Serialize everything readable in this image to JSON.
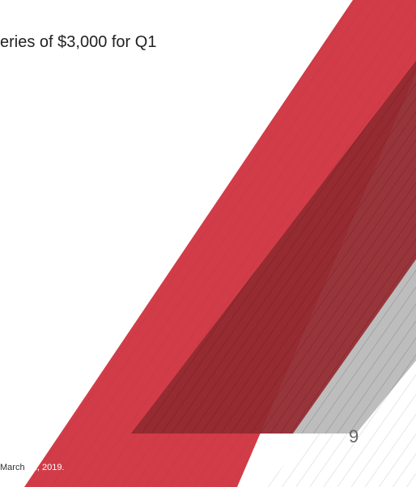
{
  "slide": {
    "headline_text": "eries of $3,000 for Q1",
    "page_number": "9",
    "footnote": {
      "part_dark": "March",
      "part_light": " 31, 2019."
    }
  },
  "theme": {
    "red": "#d23c48",
    "dark_red": "#922a30",
    "gray": "#bdbdbd",
    "text": "#222222"
  },
  "decorations": [
    "diagonal-red-band",
    "dark-red-overlay",
    "gray-band",
    "hatched-stripes"
  ]
}
